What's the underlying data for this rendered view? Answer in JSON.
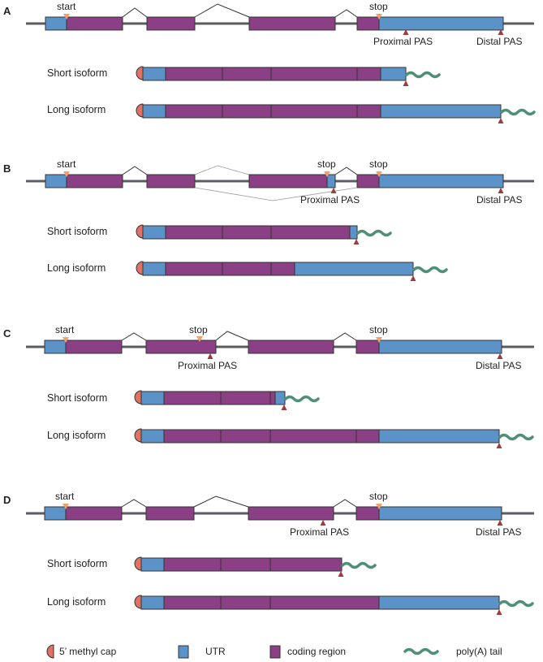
{
  "colors": {
    "utr": "#5b93c9",
    "coding": "#8b3f84",
    "cap": "#e07264",
    "polya": "#4f8f78",
    "pas": "#9c3c3c",
    "codon": "#f2a06b",
    "backbone": "#5a5c62",
    "outline": "#333333"
  },
  "panels": [
    {
      "letter": "A",
      "start_label": "start",
      "stop_label": "stop",
      "proximal_label": "Proximal PAS",
      "distal_label": "Distal PAS",
      "short_label": "Short isoform",
      "long_label": "Long isoform"
    },
    {
      "letter": "B",
      "start_label": "start",
      "stop1_label": "stop",
      "stop2_label": "stop",
      "proximal_label": "Proximal PAS",
      "distal_label": "Distal PAS",
      "short_label": "Short isoform",
      "long_label": "Long isoform"
    },
    {
      "letter": "C",
      "start_label": "start",
      "stop1_label": "stop",
      "stop2_label": "stop",
      "proximal_label": "Proximal PAS",
      "distal_label": "Distal PAS",
      "short_label": "Short isoform",
      "long_label": "Long isoform"
    },
    {
      "letter": "D",
      "start_label": "start",
      "stop_label": "stop",
      "proximal_label": "Proximal PAS",
      "distal_label": "Distal PAS",
      "short_label": "Short isoform",
      "long_label": "Long isoform"
    }
  ],
  "legend": {
    "cap": "5’ methyl cap",
    "utr": "UTR",
    "coding": "coding region",
    "polya": "poly(A) tail"
  }
}
